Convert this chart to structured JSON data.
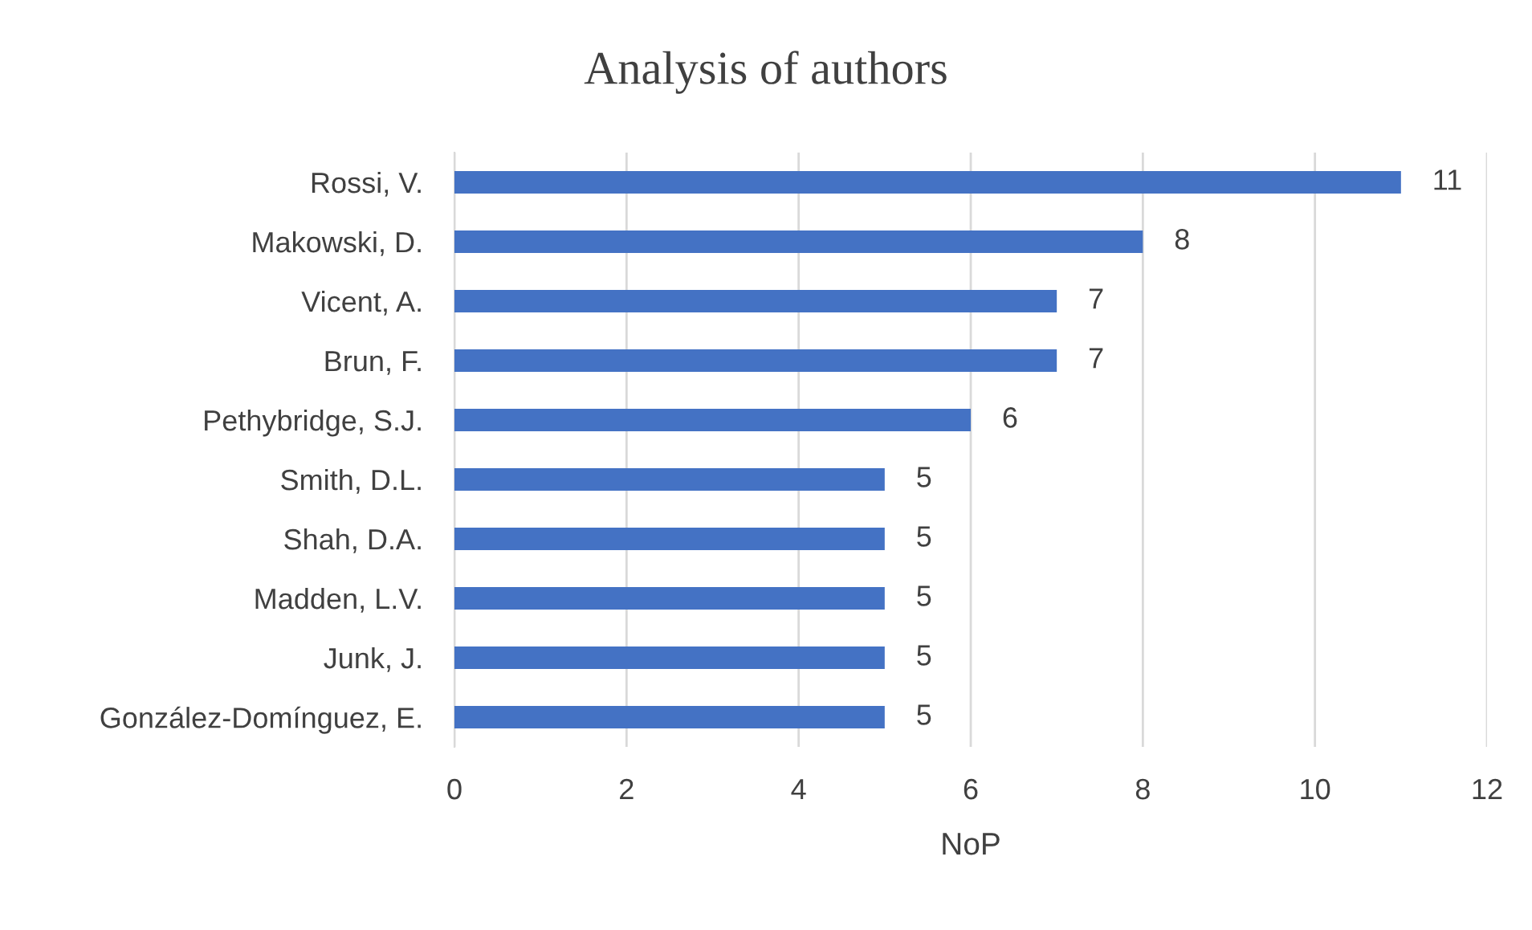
{
  "chart_data": {
    "type": "bar",
    "orientation": "horizontal",
    "title": "Analysis of authors",
    "xlabel": "NoP",
    "categories": [
      "Rossi, V.",
      "Makowski, D.",
      "Vicent, A.",
      "Brun, F.",
      "Pethybridge, S.J.",
      "Smith, D.L.",
      "Shah, D.A.",
      "Madden, L.V.",
      "Junk, J.",
      "González-Domínguez, E."
    ],
    "values": [
      11,
      8,
      7,
      7,
      6,
      5,
      5,
      5,
      5,
      5
    ],
    "color": "#4472c4",
    "xlim": [
      0,
      12
    ],
    "xticks": [
      0,
      2,
      4,
      6,
      8,
      10,
      12
    ],
    "grid": "x",
    "data_labels": true
  }
}
